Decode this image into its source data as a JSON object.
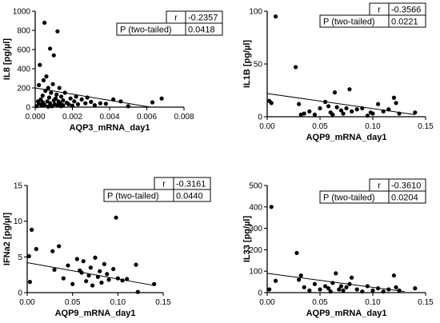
{
  "chart_data": [
    {
      "type": "scatter",
      "xlabel": "AQP3_mRNA_day1",
      "ylabel": "IL8 [pg/µl]",
      "xlim": [
        0,
        0.008
      ],
      "ylim": [
        0,
        1000
      ],
      "xticks": [
        "0.000",
        "0.002",
        "0.004",
        "0.006",
        "0.008"
      ],
      "yticks": [
        "0",
        "200",
        "400",
        "600",
        "800",
        "1000"
      ],
      "stats": {
        "r_label": "r",
        "r_value": "-0.2357",
        "p_label": "P (two-tailed)",
        "p_value": "0.0418"
      },
      "fit": [
        [
          0,
          200
        ],
        [
          0.0062,
          0
        ]
      ],
      "points": [
        [
          8e-05,
          10
        ],
        [
          0.00015,
          60
        ],
        [
          0.0002,
          35
        ],
        [
          0.0002,
          230
        ],
        [
          0.00025,
          440
        ],
        [
          0.0003,
          80
        ],
        [
          0.00035,
          15
        ],
        [
          0.0004,
          120
        ],
        [
          0.0004,
          50
        ],
        [
          0.00045,
          280
        ],
        [
          0.0005,
          880
        ],
        [
          0.0005,
          25
        ],
        [
          0.00055,
          170
        ],
        [
          0.0006,
          320
        ],
        [
          0.00065,
          60
        ],
        [
          0.0007,
          200
        ],
        [
          0.0007,
          5
        ],
        [
          0.00075,
          100
        ],
        [
          0.0008,
          40
        ],
        [
          0.0008,
          610
        ],
        [
          0.00085,
          150
        ],
        [
          0.0009,
          10
        ],
        [
          0.00095,
          240
        ],
        [
          0.001,
          70
        ],
        [
          0.001,
          540
        ],
        [
          0.00105,
          30
        ],
        [
          0.0011,
          90
        ],
        [
          0.00115,
          130
        ],
        [
          0.0012,
          790
        ],
        [
          0.0012,
          20
        ],
        [
          0.00125,
          60
        ],
        [
          0.0013,
          200
        ],
        [
          0.00135,
          40
        ],
        [
          0.0014,
          110
        ],
        [
          0.0014,
          10
        ],
        [
          0.0015,
          70
        ],
        [
          0.0015,
          20
        ],
        [
          0.0016,
          150
        ],
        [
          0.0017,
          45
        ],
        [
          0.0018,
          30
        ],
        [
          0.0019,
          90
        ],
        [
          0.002,
          15
        ],
        [
          0.0021,
          60
        ],
        [
          0.0022,
          110
        ],
        [
          0.0023,
          30
        ],
        [
          0.0025,
          80
        ],
        [
          0.0027,
          40
        ],
        [
          0.0028,
          100
        ],
        [
          0.003,
          55
        ],
        [
          0.0032,
          20
        ],
        [
          0.0035,
          40
        ],
        [
          0.0038,
          35
        ],
        [
          0.0042,
          80
        ],
        [
          0.0046,
          60
        ],
        [
          0.005,
          10
        ],
        [
          0.0063,
          50
        ],
        [
          0.0068,
          90
        ]
      ]
    },
    {
      "type": "scatter",
      "xlabel": "AQP9_mRNA_day1",
      "ylabel": "IL1B [pg/µl]",
      "xlim": [
        0,
        0.15
      ],
      "ylim": [
        0,
        100
      ],
      "xticks": [
        "0.00",
        "0.05",
        "0.10",
        "0.15"
      ],
      "yticks": [
        "0",
        "50",
        "100"
      ],
      "stats": {
        "r_label": "r",
        "r_value": "-0.3566",
        "p_label": "P (two-tailed)",
        "p_value": "0.0221"
      },
      "fit": [
        [
          0,
          22
        ],
        [
          0.14,
          2
        ]
      ],
      "points": [
        [
          0.002,
          15
        ],
        [
          0.004,
          13
        ],
        [
          0.008,
          95
        ],
        [
          0.027,
          47
        ],
        [
          0.03,
          12
        ],
        [
          0.032,
          2
        ],
        [
          0.035,
          3
        ],
        [
          0.04,
          5
        ],
        [
          0.045,
          2
        ],
        [
          0.05,
          8
        ],
        [
          0.055,
          14
        ],
        [
          0.058,
          10
        ],
        [
          0.06,
          4
        ],
        [
          0.062,
          2
        ],
        [
          0.064,
          23
        ],
        [
          0.066,
          9
        ],
        [
          0.07,
          6
        ],
        [
          0.072,
          3
        ],
        [
          0.075,
          8
        ],
        [
          0.078,
          26
        ],
        [
          0.08,
          5
        ],
        [
          0.085,
          7
        ],
        [
          0.09,
          8
        ],
        [
          0.095,
          1
        ],
        [
          0.098,
          4
        ],
        [
          0.1,
          3
        ],
        [
          0.105,
          12
        ],
        [
          0.11,
          5
        ],
        [
          0.115,
          7
        ],
        [
          0.12,
          18
        ],
        [
          0.122,
          13
        ],
        [
          0.125,
          3
        ],
        [
          0.14,
          4
        ]
      ]
    },
    {
      "type": "scatter",
      "xlabel": "AQP9_mRNA_day1",
      "ylabel": "IFNa2 [pg/µl]",
      "xlim": [
        0,
        0.15
      ],
      "ylim": [
        0,
        15
      ],
      "xticks": [
        "0.00",
        "0.05",
        "0.10",
        "0.15"
      ],
      "yticks": [
        "0",
        "5",
        "10",
        "15"
      ],
      "stats": {
        "r_label": "r",
        "r_value": "-0.3161",
        "p_label": "P (two-tailed)",
        "p_value": "0.0440"
      },
      "fit": [
        [
          0,
          4.2
        ],
        [
          0.14,
          1.0
        ]
      ],
      "points": [
        [
          0.002,
          5.1
        ],
        [
          0.003,
          1.5
        ],
        [
          0.005,
          8.8
        ],
        [
          0.01,
          6.1
        ],
        [
          0.028,
          5.8
        ],
        [
          0.03,
          3.2
        ],
        [
          0.035,
          6.5
        ],
        [
          0.04,
          2.0
        ],
        [
          0.045,
          3.8
        ],
        [
          0.05,
          1.2
        ],
        [
          0.055,
          4.7
        ],
        [
          0.058,
          3.1
        ],
        [
          0.06,
          2.8
        ],
        [
          0.062,
          4.4
        ],
        [
          0.065,
          1.6
        ],
        [
          0.068,
          2.4
        ],
        [
          0.07,
          3.5
        ],
        [
          0.072,
          1.0
        ],
        [
          0.075,
          4.9
        ],
        [
          0.078,
          2.2
        ],
        [
          0.08,
          3.0
        ],
        [
          0.082,
          1.4
        ],
        [
          0.085,
          4.0
        ],
        [
          0.088,
          2.6
        ],
        [
          0.09,
          1.8
        ],
        [
          0.095,
          3.3
        ],
        [
          0.098,
          10.5
        ],
        [
          0.1,
          2.0
        ],
        [
          0.105,
          1.7
        ],
        [
          0.11,
          1.9
        ],
        [
          0.12,
          3.9
        ],
        [
          0.122,
          0.1
        ],
        [
          0.14,
          1.2
        ]
      ]
    },
    {
      "type": "scatter",
      "xlabel": "AQP9_mRNA_day1",
      "ylabel": "IL33 [pg/µl]",
      "xlim": [
        0,
        0.15
      ],
      "ylim": [
        0,
        500
      ],
      "xticks": [
        "0.00",
        "0.05",
        "0.10",
        "0.15"
      ],
      "yticks": [
        "0",
        "100",
        "200",
        "300",
        "400",
        "500"
      ],
      "stats": {
        "r_label": "r",
        "r_value": "-0.3610",
        "p_label": "P (two-tailed)",
        "p_value": "0.0204"
      },
      "fit": [
        [
          0,
          90
        ],
        [
          0.13,
          5
        ]
      ],
      "points": [
        [
          0.002,
          15
        ],
        [
          0.004,
          400
        ],
        [
          0.008,
          55
        ],
        [
          0.028,
          185
        ],
        [
          0.03,
          60
        ],
        [
          0.032,
          80
        ],
        [
          0.035,
          25
        ],
        [
          0.04,
          10
        ],
        [
          0.045,
          40
        ],
        [
          0.05,
          15
        ],
        [
          0.055,
          30
        ],
        [
          0.058,
          20
        ],
        [
          0.06,
          5
        ],
        [
          0.062,
          45
        ],
        [
          0.065,
          90
        ],
        [
          0.068,
          15
        ],
        [
          0.07,
          30
        ],
        [
          0.072,
          10
        ],
        [
          0.075,
          25
        ],
        [
          0.078,
          40
        ],
        [
          0.08,
          70
        ],
        [
          0.085,
          15
        ],
        [
          0.09,
          5
        ],
        [
          0.095,
          30
        ],
        [
          0.1,
          10
        ],
        [
          0.105,
          20
        ],
        [
          0.11,
          5
        ],
        [
          0.115,
          15
        ],
        [
          0.12,
          80
        ],
        [
          0.122,
          25
        ],
        [
          0.125,
          10
        ],
        [
          0.14,
          20
        ]
      ]
    }
  ]
}
